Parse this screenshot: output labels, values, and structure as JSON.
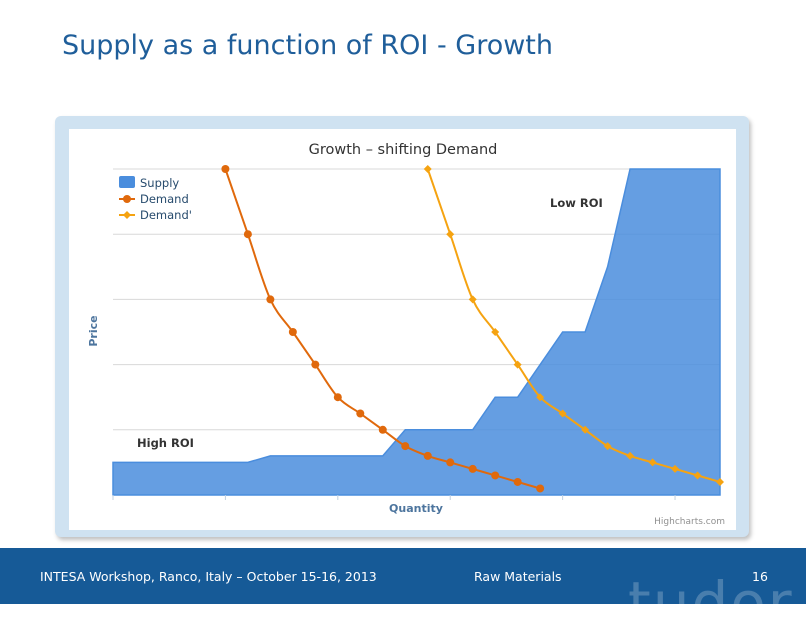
{
  "slide": {
    "title": "Supply as a function of ROI - Growth"
  },
  "footer": {
    "event": "INTESA Workshop, Ranco, Italy – October 15-16, 2013",
    "section": "Raw Materials",
    "page": "16",
    "watermark": "tudor"
  },
  "colors": {
    "supply": "#4a8ddd",
    "demand": "#e0690c",
    "demand_prime": "#f5a311",
    "title_blue": "#1f5e9a",
    "footer_bg": "#165a97"
  },
  "chart_data": {
    "type": "area",
    "title": "Growth – shifting Demand",
    "xlabel": "Quantity",
    "ylabel": "Price",
    "credits": "Highcharts.com",
    "xlim": [
      0,
      27
    ],
    "ylim": [
      0,
      5
    ],
    "grid": true,
    "legend": [
      "Supply",
      "Demand",
      "Demand'"
    ],
    "annotations": [
      {
        "text": "High ROI",
        "x": 1,
        "y": 0.7
      },
      {
        "text": "Low ROI",
        "x": 19.5,
        "y": 4.4
      }
    ],
    "series": [
      {
        "name": "Supply",
        "type": "area",
        "x": [
          0,
          6,
          7,
          12,
          13,
          16,
          17,
          18,
          20,
          21,
          22,
          23,
          27
        ],
        "values": [
          0.5,
          0.5,
          0.6,
          0.6,
          1.0,
          1.0,
          1.5,
          1.5,
          2.5,
          2.5,
          3.5,
          5.0,
          5.0
        ]
      },
      {
        "name": "Demand",
        "type": "line",
        "x": [
          5,
          6,
          7,
          8,
          9,
          10,
          11,
          12,
          13,
          14,
          15,
          16,
          17,
          18,
          19
        ],
        "values": [
          5.0,
          4.0,
          3.0,
          2.5,
          2.0,
          1.5,
          1.25,
          1.0,
          0.75,
          0.6,
          0.5,
          0.4,
          0.3,
          0.2,
          0.1
        ]
      },
      {
        "name": "Demand'",
        "type": "line",
        "x": [
          14,
          15,
          16,
          17,
          18,
          19,
          20,
          21,
          22,
          23,
          24,
          25,
          26,
          27
        ],
        "values": [
          5.0,
          4.0,
          3.0,
          2.5,
          2.0,
          1.5,
          1.25,
          1.0,
          0.75,
          0.6,
          0.5,
          0.4,
          0.3,
          0.2
        ]
      }
    ]
  }
}
